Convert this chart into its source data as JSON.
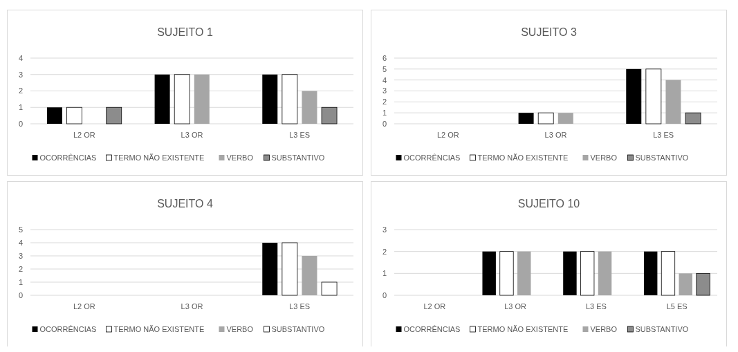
{
  "chart_data": [
    {
      "type": "bar",
      "title": "SUJEITO 1",
      "categories": [
        "L2 OR",
        "L3 OR",
        "L3 ES"
      ],
      "series": [
        {
          "name": "OCORRÊNCIAS",
          "color": "#000000",
          "values": [
            1,
            3,
            3
          ]
        },
        {
          "name": "TERMO NÃO EXISTENTE",
          "color": "#ffffff",
          "values": [
            1,
            3,
            3
          ]
        },
        {
          "name": "VERBO",
          "color": "#a6a6a6",
          "values": [
            0,
            3,
            2
          ]
        },
        {
          "name": "SUBSTANTIVO",
          "color": "#8c8c8c",
          "values": [
            1,
            0,
            1
          ]
        }
      ],
      "ylim": [
        0,
        4
      ],
      "yticks": [
        0,
        1,
        2,
        3,
        4
      ],
      "grid": "y",
      "legend": "bottom"
    },
    {
      "type": "bar",
      "title": "SUJEITO 3",
      "categories": [
        "L2 OR",
        "L3 OR",
        "L3 ES"
      ],
      "series": [
        {
          "name": "OCORRÊNCIAS",
          "color": "#000000",
          "values": [
            0,
            1,
            5
          ]
        },
        {
          "name": "TERMO NÃO EXISTENTE",
          "color": "#ffffff",
          "values": [
            0,
            1,
            5
          ]
        },
        {
          "name": "VERBO",
          "color": "#a6a6a6",
          "values": [
            0,
            1,
            4
          ]
        },
        {
          "name": "SUBSTANTIVO",
          "color": "#8c8c8c",
          "values": [
            0,
            0,
            1
          ]
        }
      ],
      "ylim": [
        0,
        6
      ],
      "yticks": [
        0,
        1,
        2,
        3,
        4,
        5,
        6
      ],
      "grid": "y",
      "legend": "bottom"
    },
    {
      "type": "bar",
      "title": "SUJEITO 4",
      "categories": [
        "L2 OR",
        "L3 OR",
        "L3 ES"
      ],
      "series": [
        {
          "name": "OCORRÊNCIAS",
          "color": "#000000",
          "values": [
            0,
            0,
            4
          ]
        },
        {
          "name": "TERMO NÃO EXISTENTE",
          "color": "#ffffff",
          "values": [
            0,
            0,
            4
          ]
        },
        {
          "name": "VERBO",
          "color": "#a6a6a6",
          "values": [
            0,
            0,
            3
          ]
        },
        {
          "name": "SUBSTANTIVO",
          "color": "#ffffff",
          "values": [
            0,
            0,
            1
          ]
        }
      ],
      "ylim": [
        0,
        5
      ],
      "yticks": [
        0,
        1,
        2,
        3,
        4,
        5
      ],
      "grid": "y",
      "legend": "bottom"
    },
    {
      "type": "bar",
      "title": "SUJEITO 10",
      "categories": [
        "L2 OR",
        "L3 OR",
        "L3 ES",
        "L5 ES"
      ],
      "series": [
        {
          "name": "OCORRÊNCIAS",
          "color": "#000000",
          "values": [
            0,
            2,
            2,
            2
          ]
        },
        {
          "name": "TERMO NÃO EXISTENTE",
          "color": "#ffffff",
          "values": [
            0,
            2,
            2,
            2
          ]
        },
        {
          "name": "VERBO",
          "color": "#a6a6a6",
          "values": [
            0,
            2,
            2,
            1
          ]
        },
        {
          "name": "SUBSTANTIVO",
          "color": "#8c8c8c",
          "values": [
            0,
            0,
            0,
            1
          ]
        }
      ],
      "ylim": [
        0,
        3
      ],
      "yticks": [
        0,
        1,
        2,
        3
      ],
      "grid": "y",
      "legend": "bottom"
    }
  ]
}
